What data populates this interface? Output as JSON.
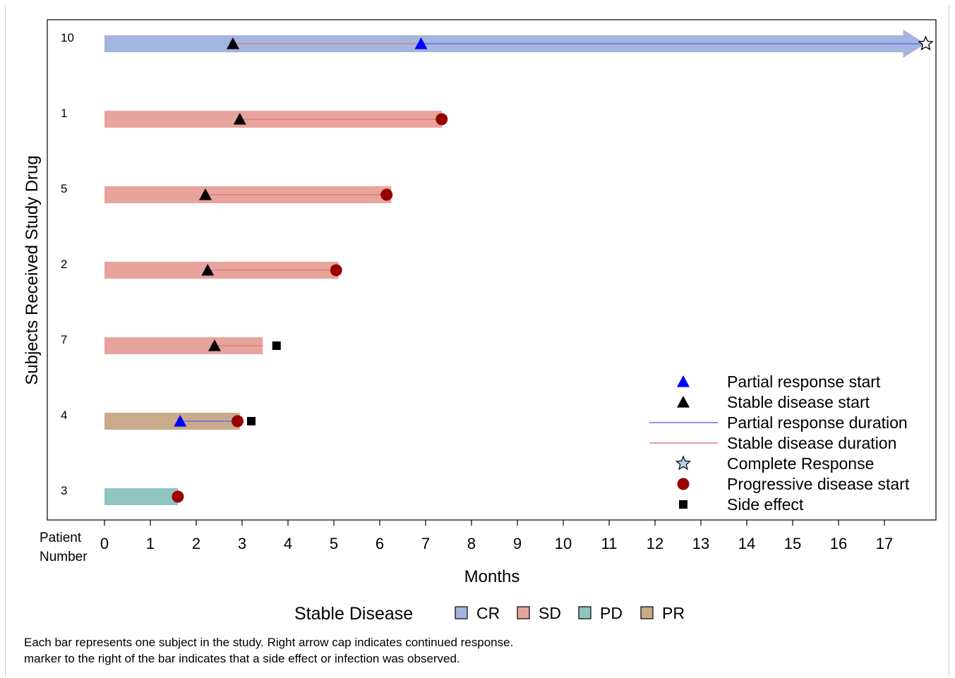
{
  "chart_data": {
    "type": "bar",
    "orientation": "horizontal",
    "xlabel": "Months",
    "ylabel": "Subjects Received Study Drug",
    "y_axis_header": [
      "Patient",
      "Number"
    ],
    "xlim": [
      0,
      18
    ],
    "xticks": [
      0,
      1,
      2,
      3,
      4,
      5,
      6,
      7,
      8,
      9,
      10,
      11,
      12,
      13,
      14,
      15,
      16,
      17
    ],
    "grid": false,
    "categories": [
      "10",
      "1",
      "5",
      "2",
      "7",
      "4",
      "3"
    ],
    "stage_colors": {
      "CR": "#a4b5e0",
      "SD": "#e8a49c",
      "PD": "#8fc4bf",
      "PR": "#c9ab8b"
    },
    "subjects": [
      {
        "id": "10",
        "stage": "CR",
        "duration": 17.9,
        "continued": true,
        "events": {
          "sd_start": 2.8,
          "pr_start": 6.9,
          "sd_dur": [
            2.8,
            6.9
          ],
          "pr_dur": [
            6.9,
            17.9
          ],
          "cr": 17.9
        }
      },
      {
        "id": "1",
        "stage": "SD",
        "duration": 7.35,
        "continued": false,
        "events": {
          "sd_start": 2.95,
          "sd_dur": [
            2.95,
            7.35
          ],
          "pd_start": 7.35
        }
      },
      {
        "id": "5",
        "stage": "SD",
        "duration": 6.25,
        "continued": false,
        "events": {
          "sd_start": 2.2,
          "sd_dur": [
            2.2,
            6.15
          ],
          "pd_start": 6.15
        }
      },
      {
        "id": "2",
        "stage": "SD",
        "duration": 5.1,
        "continued": false,
        "events": {
          "sd_start": 2.25,
          "sd_dur": [
            2.25,
            5.05
          ],
          "pd_start": 5.05
        }
      },
      {
        "id": "7",
        "stage": "SD",
        "duration": 3.45,
        "continued": false,
        "events": {
          "sd_start": 2.4,
          "sd_dur": [
            2.4,
            3.45
          ],
          "side_effect": 3.75
        }
      },
      {
        "id": "4",
        "stage": "PR",
        "duration": 2.95,
        "continued": false,
        "events": {
          "pr_start": 1.65,
          "pr_dur": [
            1.65,
            2.9
          ],
          "pd_start": 2.9,
          "side_effect": 3.2
        }
      },
      {
        "id": "3",
        "stage": "PD",
        "duration": 1.6,
        "continued": false,
        "events": {
          "pd_start": 1.6
        }
      }
    ],
    "legend_position": "bottom-right",
    "legend": [
      {
        "symbol": "triangle",
        "color": "#0000ff",
        "label": "Partial response start"
      },
      {
        "symbol": "triangle",
        "color": "#000000",
        "label": "Stable disease start"
      },
      {
        "symbol": "line",
        "color": "#6b6bf0",
        "label": "Partial response duration"
      },
      {
        "symbol": "line",
        "color": "#d98080",
        "label": "Stable disease duration"
      },
      {
        "symbol": "star",
        "color": "#b8cfe8",
        "label": "Complete Response"
      },
      {
        "symbol": "circle",
        "color": "#990000",
        "label": "Progressive disease start"
      },
      {
        "symbol": "square",
        "color": "#000000",
        "label": "Side effect"
      }
    ],
    "stage_legend_title": "Stable Disease",
    "stage_legend": [
      {
        "key": "CR",
        "label": "CR"
      },
      {
        "key": "SD",
        "label": "SD"
      },
      {
        "key": "PD",
        "label": "PD"
      },
      {
        "key": "PR",
        "label": "PR"
      }
    ]
  },
  "footnote": {
    "line1": "Each bar represents one subject in the study.  Right arrow cap indicates continued response.",
    "line2": "marker to the right of the bar indicates that a side effect or infection was observed."
  }
}
